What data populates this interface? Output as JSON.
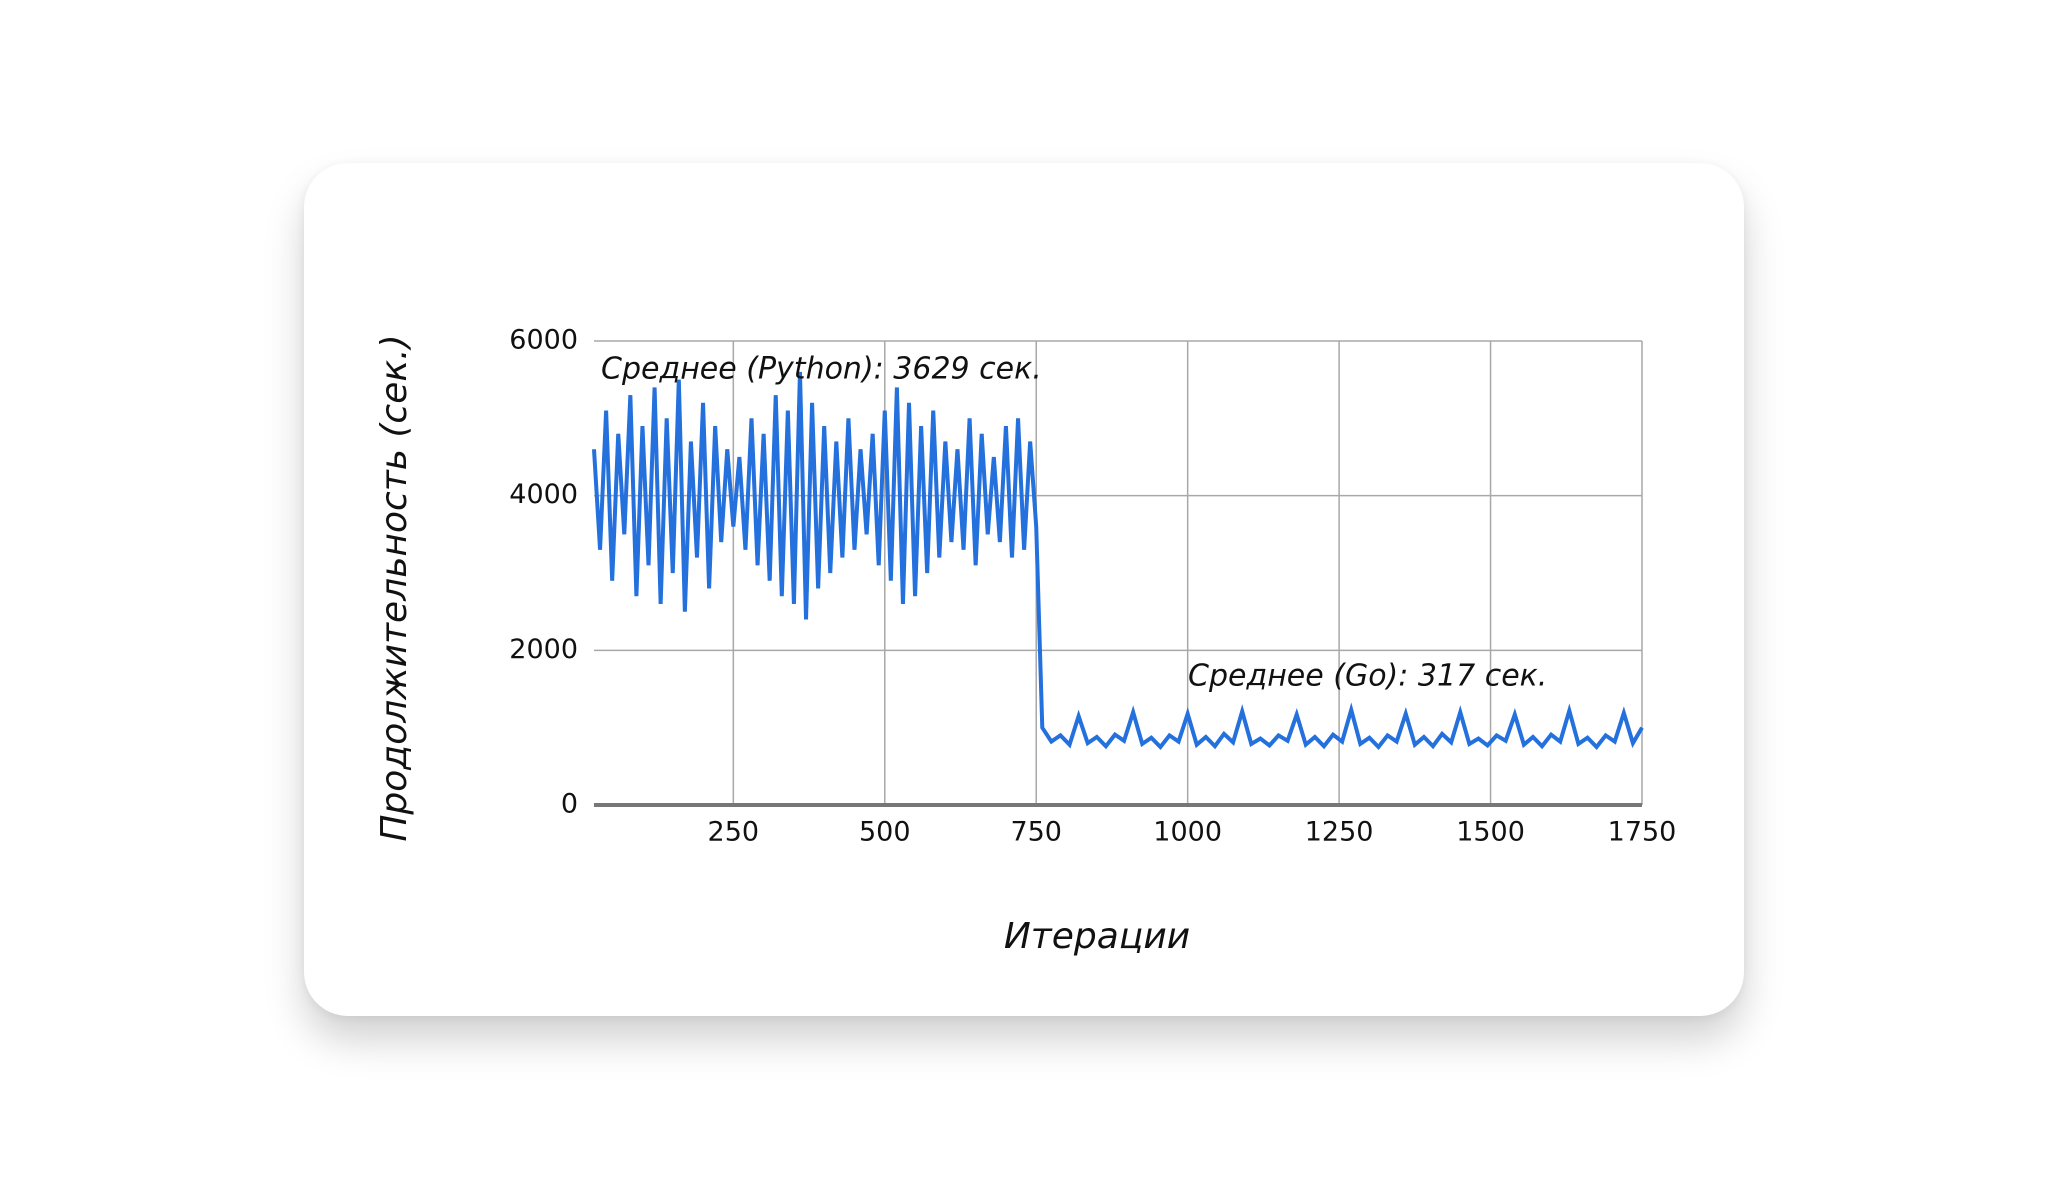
{
  "chart_data": {
    "type": "line",
    "x_label": "Итерации",
    "y_label": "Продолжительность (сек.)",
    "annotations": [
      "Среднее (Python): 3629 сек.",
      "Среднее (Go): 317 сек."
    ],
    "x": [
      20,
      30,
      40,
      50,
      60,
      70,
      80,
      90,
      100,
      110,
      120,
      130,
      140,
      150,
      160,
      170,
      180,
      190,
      200,
      210,
      220,
      230,
      240,
      250,
      260,
      270,
      280,
      290,
      300,
      310,
      320,
      330,
      340,
      350,
      360,
      370,
      380,
      390,
      400,
      410,
      420,
      430,
      440,
      450,
      460,
      470,
      480,
      490,
      500,
      510,
      520,
      530,
      540,
      550,
      560,
      570,
      580,
      590,
      600,
      610,
      620,
      630,
      640,
      650,
      660,
      670,
      680,
      690,
      700,
      710,
      720,
      730,
      740,
      750,
      760,
      775,
      790,
      805,
      820,
      835,
      850,
      865,
      880,
      895,
      910,
      925,
      940,
      955,
      970,
      985,
      1000,
      1015,
      1030,
      1045,
      1060,
      1075,
      1090,
      1105,
      1120,
      1135,
      1150,
      1165,
      1180,
      1195,
      1210,
      1225,
      1240,
      1255,
      1270,
      1285,
      1300,
      1315,
      1330,
      1345,
      1360,
      1375,
      1390,
      1405,
      1420,
      1435,
      1450,
      1465,
      1480,
      1495,
      1510,
      1525,
      1540,
      1555,
      1570,
      1585,
      1600,
      1615,
      1630,
      1645,
      1660,
      1675,
      1690,
      1705,
      1720,
      1735,
      1750
    ],
    "series": [
      {
        "color": "#2470dc",
        "values": [
          4600,
          3300,
          5100,
          2900,
          4800,
          3500,
          5300,
          2700,
          4900,
          3100,
          5400,
          2600,
          5000,
          3000,
          5500,
          2500,
          4700,
          3200,
          5200,
          2800,
          4900,
          3400,
          4600,
          3600,
          4500,
          3300,
          5000,
          3100,
          4800,
          2900,
          5300,
          2700,
          5100,
          2600,
          5600,
          2400,
          5200,
          2800,
          4900,
          3000,
          4700,
          3200,
          5000,
          3300,
          4600,
          3500,
          4800,
          3100,
          5100,
          2900,
          5400,
          2600,
          5200,
          2700,
          4900,
          3000,
          5100,
          3200,
          4700,
          3400,
          4600,
          3300,
          5000,
          3100,
          4800,
          3500,
          4500,
          3400,
          4900,
          3200,
          5000,
          3300,
          4700,
          3600,
          1000,
          820,
          900,
          780,
          1150,
          800,
          880,
          760,
          910,
          830,
          1200,
          790,
          870,
          750,
          900,
          820,
          1180,
          780,
          880,
          760,
          920,
          810,
          1210,
          790,
          860,
          770,
          900,
          830,
          1170,
          780,
          880,
          760,
          910,
          820,
          1230,
          790,
          870,
          750,
          900,
          820,
          1180,
          780,
          880,
          760,
          920,
          810,
          1200,
          790,
          860,
          770,
          900,
          830,
          1170,
          780,
          880,
          760,
          910,
          820,
          1220,
          790,
          870,
          750,
          900,
          820,
          1190,
          800,
          1000
        ]
      }
    ],
    "xlim": [
      20,
      1750
    ],
    "xticks": [
      250,
      500,
      750,
      1000,
      1250,
      1500,
      1750
    ],
    "ylim": [
      0,
      6000
    ],
    "yticks": [
      0,
      2000,
      4000,
      6000
    ],
    "grid": true
  }
}
